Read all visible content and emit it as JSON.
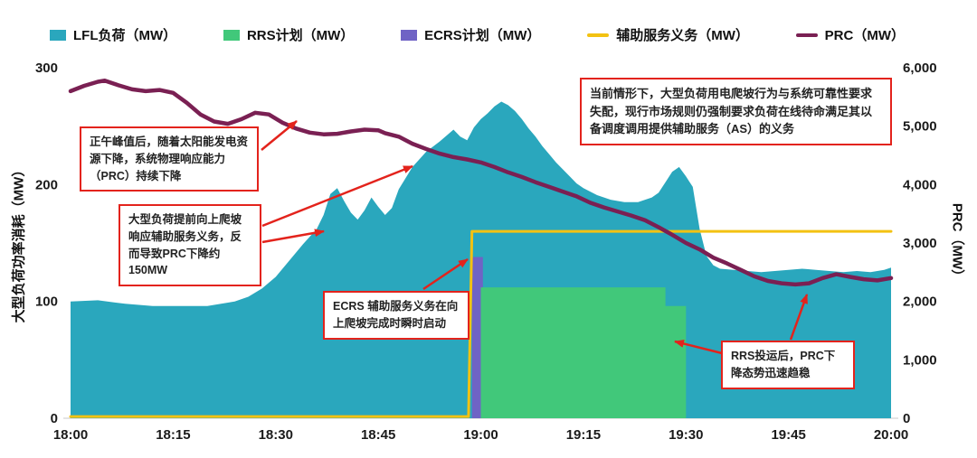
{
  "colors": {
    "lfl_teal": "#2aa7bd",
    "rrs_green": "#41c87a",
    "ecrs_purple": "#6f63c5",
    "obligation_yellow": "#f3c212",
    "prc_maroon": "#7a2053",
    "annotation_red": "#e3231c",
    "axis_text": "#1a1a1a"
  },
  "legend": {
    "items": [
      {
        "label": "LFL负荷（MW）",
        "color": "#2aa7bd",
        "swatch": "area"
      },
      {
        "label": "RRS计划（MW）",
        "color": "#41c87a",
        "swatch": "area"
      },
      {
        "label": "ECRS计划（MW）",
        "color": "#6f63c5",
        "swatch": "area"
      },
      {
        "label": "辅助服务义务（MW）",
        "color": "#f3c212",
        "swatch": "line"
      },
      {
        "label": "PRC（MW）",
        "color": "#7a2053",
        "swatch": "line"
      }
    ]
  },
  "chart_data": {
    "type": "area",
    "x_unit": "minutes after 18:00",
    "x_range": [
      0,
      120
    ],
    "x_ticks": {
      "minutes": [
        0,
        15,
        30,
        45,
        60,
        75,
        90,
        105,
        120
      ],
      "labels": [
        "18:00",
        "18:15",
        "18:30",
        "18:45",
        "19:00",
        "19:15",
        "19:30",
        "19:45",
        "20:00"
      ]
    },
    "left_axis": {
      "title": "大型负荷功率消耗（MW）",
      "min": 0,
      "max": 300,
      "tick_values": [
        0,
        100,
        200,
        300
      ],
      "tick_labels": [
        "0",
        "100",
        "200",
        "300"
      ]
    },
    "right_axis": {
      "title": "PRC（MW）",
      "min": 0,
      "max": 6000,
      "tick_values": [
        0,
        1000,
        2000,
        3000,
        4000,
        5000,
        6000
      ],
      "tick_labels": [
        "0",
        "1,000",
        "2,000",
        "3,000",
        "4,000",
        "5,000",
        "6,000"
      ]
    },
    "series": [
      {
        "name": "LFL负荷（MW）",
        "type": "area",
        "axis": "left",
        "color": "#2aa7bd",
        "points": [
          [
            0,
            100
          ],
          [
            4,
            101
          ],
          [
            8,
            98
          ],
          [
            12,
            96
          ],
          [
            16,
            96
          ],
          [
            20,
            96
          ],
          [
            24,
            100
          ],
          [
            26,
            104
          ],
          [
            28,
            111
          ],
          [
            30,
            121
          ],
          [
            32,
            135
          ],
          [
            34,
            149
          ],
          [
            36,
            162
          ],
          [
            37,
            174
          ],
          [
            38,
            192
          ],
          [
            39,
            197
          ],
          [
            40,
            186
          ],
          [
            41,
            176
          ],
          [
            42,
            170
          ],
          [
            43,
            178
          ],
          [
            44,
            189
          ],
          [
            45,
            181
          ],
          [
            46,
            174
          ],
          [
            47,
            180
          ],
          [
            48,
            196
          ],
          [
            50,
            215
          ],
          [
            52,
            228
          ],
          [
            54,
            237
          ],
          [
            56,
            247
          ],
          [
            57,
            241
          ],
          [
            58,
            238
          ],
          [
            59,
            249
          ],
          [
            60,
            256
          ],
          [
            61,
            261
          ],
          [
            62,
            267
          ],
          [
            63,
            271
          ],
          [
            64,
            268
          ],
          [
            65,
            263
          ],
          [
            66,
            256
          ],
          [
            67,
            248
          ],
          [
            68,
            241
          ],
          [
            69,
            233
          ],
          [
            70,
            226
          ],
          [
            71,
            219
          ],
          [
            72,
            213
          ],
          [
            73,
            207
          ],
          [
            74,
            201
          ],
          [
            75,
            197
          ],
          [
            77,
            191
          ],
          [
            79,
            187
          ],
          [
            81,
            185
          ],
          [
            83,
            185
          ],
          [
            85,
            189
          ],
          [
            86,
            193
          ],
          [
            87,
            202
          ],
          [
            88,
            211
          ],
          [
            89,
            215
          ],
          [
            90,
            207
          ],
          [
            91,
            198
          ],
          [
            92,
            162
          ],
          [
            93,
            139
          ],
          [
            94,
            131
          ],
          [
            95,
            128
          ],
          [
            97,
            127
          ],
          [
            99,
            126
          ],
          [
            101,
            125
          ],
          [
            103,
            126
          ],
          [
            105,
            127
          ],
          [
            107,
            128
          ],
          [
            109,
            127
          ],
          [
            111,
            126
          ],
          [
            113,
            125
          ],
          [
            115,
            126
          ],
          [
            117,
            125
          ],
          [
            119,
            127
          ],
          [
            120,
            129
          ]
        ]
      },
      {
        "name": "ECRS计划（MW）",
        "type": "area",
        "axis": "left",
        "color": "#6f63c5",
        "points": [
          [
            58.7,
            138
          ],
          [
            60.3,
            138
          ]
        ]
      },
      {
        "name": "RRS计划（MW）",
        "type": "area",
        "axis": "left",
        "color": "#41c87a",
        "points": [
          [
            60,
            112
          ],
          [
            87,
            112
          ],
          [
            87,
            96
          ],
          [
            90,
            96
          ]
        ]
      },
      {
        "name": "辅助服务义务（MW）",
        "type": "line",
        "axis": "left",
        "color": "#f3c212",
        "width": 3,
        "points": [
          [
            0,
            1.5
          ],
          [
            58.2,
            1.5
          ],
          [
            58.7,
            160
          ],
          [
            120,
            160
          ]
        ]
      },
      {
        "name": "PRC（MW）",
        "type": "line",
        "axis": "right",
        "color": "#7a2053",
        "width": 4.5,
        "points": [
          [
            0,
            5600
          ],
          [
            2,
            5690
          ],
          [
            4,
            5760
          ],
          [
            5,
            5780
          ],
          [
            7,
            5700
          ],
          [
            9,
            5630
          ],
          [
            11,
            5600
          ],
          [
            13,
            5620
          ],
          [
            15,
            5570
          ],
          [
            17,
            5400
          ],
          [
            19,
            5200
          ],
          [
            21,
            5080
          ],
          [
            23,
            5040
          ],
          [
            25,
            5120
          ],
          [
            27,
            5230
          ],
          [
            29,
            5200
          ],
          [
            31,
            5060
          ],
          [
            33,
            4960
          ],
          [
            35,
            4890
          ],
          [
            37,
            4860
          ],
          [
            39,
            4870
          ],
          [
            41,
            4910
          ],
          [
            43,
            4940
          ],
          [
            45,
            4930
          ],
          [
            46,
            4880
          ],
          [
            48,
            4820
          ],
          [
            50,
            4700
          ],
          [
            52,
            4610
          ],
          [
            54,
            4530
          ],
          [
            56,
            4470
          ],
          [
            58,
            4430
          ],
          [
            60,
            4380
          ],
          [
            62,
            4300
          ],
          [
            64,
            4210
          ],
          [
            66,
            4130
          ],
          [
            68,
            4040
          ],
          [
            70,
            3960
          ],
          [
            72,
            3880
          ],
          [
            74,
            3800
          ],
          [
            76,
            3690
          ],
          [
            78,
            3610
          ],
          [
            80,
            3540
          ],
          [
            82,
            3470
          ],
          [
            84,
            3390
          ],
          [
            86,
            3270
          ],
          [
            88,
            3140
          ],
          [
            90,
            3000
          ],
          [
            92,
            2890
          ],
          [
            94,
            2750
          ],
          [
            96,
            2650
          ],
          [
            98,
            2540
          ],
          [
            100,
            2430
          ],
          [
            102,
            2350
          ],
          [
            104,
            2310
          ],
          [
            106,
            2290
          ],
          [
            108,
            2310
          ],
          [
            110,
            2400
          ],
          [
            112,
            2465
          ],
          [
            114,
            2420
          ],
          [
            116,
            2380
          ],
          [
            118,
            2360
          ],
          [
            120,
            2400
          ]
        ]
      }
    ]
  },
  "annotations": [
    {
      "id": "peak",
      "text": "正午峰值后，随着太阳能发电资源下降，系统物理响应能力（PRC）持续下降",
      "arrows": [
        [
          289,
          166,
          328,
          134
        ]
      ]
    },
    {
      "id": "ramp",
      "text": "大型负荷提前向上爬坡响应辅助服务义务，反而导致PRC下降约150MW",
      "arrows": [
        [
          290,
          250,
          456,
          184
        ],
        [
          290,
          268,
          358,
          256
        ]
      ]
    },
    {
      "id": "ecrs",
      "text": "ECRS 辅助服务义务在向上爬坡完成时瞬时启动",
      "arrows": [
        [
          468,
          320,
          517,
          287
        ]
      ]
    },
    {
      "id": "mismatch",
      "text": "当前情形下，大型负荷用电爬坡行为与系统可靠性要求失配，现行市场规则仍强制要求负荷在线待命满足其以备调度调用提供辅助服务（AS）的义务",
      "arrows": []
    },
    {
      "id": "rrs",
      "text": "RRS投运后，PRC下降态势迅速趋稳",
      "arrows": [
        [
          802,
          392,
          746,
          378
        ],
        [
          874,
          376,
          892,
          326
        ]
      ]
    }
  ]
}
